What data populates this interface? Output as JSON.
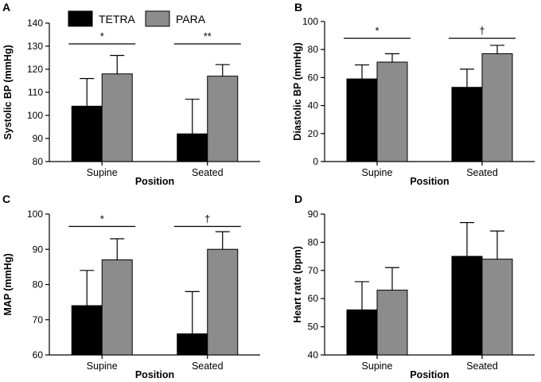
{
  "legend": [
    {
      "name": "TETRA",
      "color": "#000000"
    },
    {
      "name": "PARA",
      "color": "#8c8c8c"
    }
  ],
  "chart_data": [
    {
      "type": "bar",
      "panel": "A",
      "categories": [
        "Supine",
        "Seated"
      ],
      "series": [
        {
          "name": "TETRA",
          "values": [
            104,
            92
          ],
          "errors": [
            12,
            15
          ]
        },
        {
          "name": "PARA",
          "values": [
            118,
            117
          ],
          "errors": [
            8,
            5
          ]
        }
      ],
      "xlabel": "Position",
      "ylabel": "Systolic BP (mmHg)",
      "ylim": [
        80,
        140
      ],
      "yticks": [
        "80",
        "90",
        "100",
        "110",
        "120",
        "130",
        "140"
      ],
      "significance": [
        {
          "category": "Supine",
          "symbol": "*",
          "level": 131
        },
        {
          "category": "Seated",
          "symbol": "**",
          "level": 131
        }
      ]
    },
    {
      "type": "bar",
      "panel": "B",
      "categories": [
        "Supine",
        "Seated"
      ],
      "series": [
        {
          "name": "TETRA",
          "values": [
            59,
            53
          ],
          "errors": [
            10,
            13
          ]
        },
        {
          "name": "PARA",
          "values": [
            71,
            77
          ],
          "errors": [
            6,
            6
          ]
        }
      ],
      "xlabel": "Position",
      "ylabel": "Diastolic BP (mmHg)",
      "ylim": [
        0,
        100
      ],
      "yticks": [
        "0",
        "20",
        "40",
        "60",
        "80",
        "100"
      ],
      "significance": [
        {
          "category": "Supine",
          "symbol": "*",
          "level": 88
        },
        {
          "category": "Seated",
          "symbol": "†",
          "level": 88
        }
      ]
    },
    {
      "type": "bar",
      "panel": "C",
      "categories": [
        "Supine",
        "Seated"
      ],
      "series": [
        {
          "name": "TETRA",
          "values": [
            74,
            66
          ],
          "errors": [
            10,
            12
          ]
        },
        {
          "name": "PARA",
          "values": [
            87,
            90
          ],
          "errors": [
            6,
            5
          ]
        }
      ],
      "xlabel": "Position",
      "ylabel": "MAP (mmHg)",
      "ylim": [
        60,
        100
      ],
      "yticks": [
        "60",
        "70",
        "80",
        "90",
        "100"
      ],
      "significance": [
        {
          "category": "Supine",
          "symbol": "*",
          "level": 96.5
        },
        {
          "category": "Seated",
          "symbol": "†",
          "level": 96.5
        }
      ]
    },
    {
      "type": "bar",
      "panel": "D",
      "categories": [
        "Supine",
        "Seated"
      ],
      "series": [
        {
          "name": "TETRA",
          "values": [
            56,
            75
          ],
          "errors": [
            10,
            12
          ]
        },
        {
          "name": "PARA",
          "values": [
            63,
            74
          ],
          "errors": [
            8,
            10
          ]
        }
      ],
      "xlabel": "Position",
      "ylabel": "Heart rate (bpm)",
      "ylim": [
        40,
        90
      ],
      "yticks": [
        "40",
        "50",
        "60",
        "70",
        "80",
        "90"
      ],
      "significance": []
    }
  ]
}
